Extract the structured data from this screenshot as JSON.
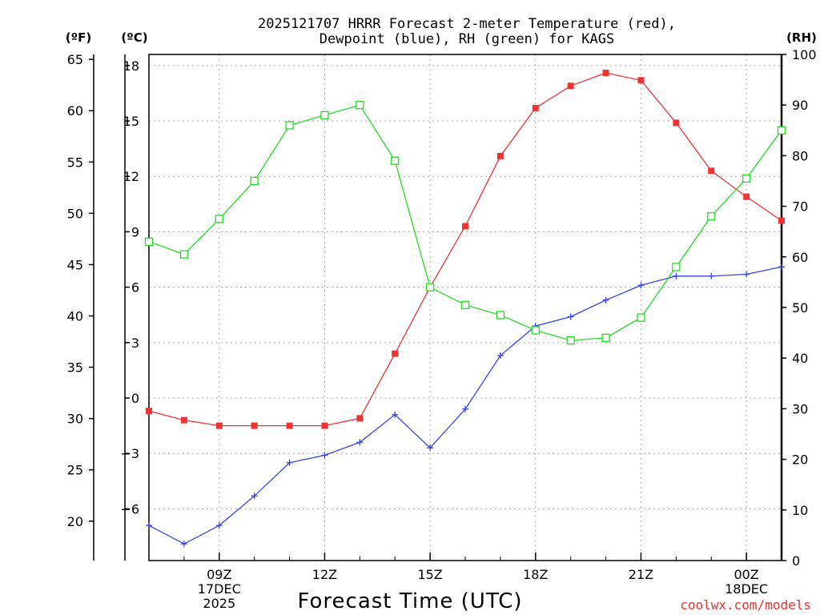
{
  "chart_data": {
    "type": "line",
    "title_line1": "2025121707 HRRR Forecast 2-meter Temperature (red),",
    "title_line2": "Dewpoint (blue), RH (green) for KAGS",
    "xlabel": "Forecast Time (UTC)",
    "credit": "coolwx.com/models",
    "colors": {
      "temp": "#ee3333",
      "dewpoint": "#3344ee",
      "rh": "#22dd22",
      "credit": "#dd3333"
    },
    "axes": {
      "fahrenheit": {
        "label": "(ºF)",
        "ticks": [
          "65",
          "60",
          "55",
          "50",
          "45",
          "40",
          "35",
          "30",
          "25",
          "20"
        ],
        "values": [
          65,
          60,
          55,
          50,
          45,
          40,
          35,
          30,
          25,
          20
        ]
      },
      "celsius": {
        "label": "(ºC)",
        "ticks": [
          "18",
          "15",
          "12",
          "9",
          "6",
          "3",
          "0",
          "−3",
          "−6"
        ],
        "values": [
          18,
          15,
          12,
          9,
          6,
          3,
          0,
          -3,
          -6
        ],
        "ylim": [
          -8.8,
          18.6
        ]
      },
      "rh": {
        "label": "(RH)",
        "ticks": [
          "100",
          "90",
          "80",
          "70",
          "60",
          "50",
          "40",
          "30",
          "20",
          "10",
          "0"
        ],
        "values": [
          100,
          90,
          80,
          70,
          60,
          50,
          40,
          30,
          20,
          10,
          0
        ],
        "ylim": [
          0,
          100
        ]
      }
    },
    "x_hours": [
      7,
      8,
      9,
      10,
      11,
      12,
      13,
      14,
      15,
      16,
      17,
      18,
      19,
      20,
      21,
      22,
      23,
      24,
      25
    ],
    "x_ticks": [
      {
        "hour": 9,
        "line1": "09Z",
        "line2": "17DEC",
        "line3": "2025"
      },
      {
        "hour": 12,
        "line1": "12Z"
      },
      {
        "hour": 15,
        "line1": "15Z"
      },
      {
        "hour": 18,
        "line1": "18Z"
      },
      {
        "hour": 21,
        "line1": "21Z"
      },
      {
        "hour": 24,
        "line1": "00Z",
        "line2": "18DEC"
      }
    ],
    "series": [
      {
        "name": "2-meter Temperature",
        "units": "C",
        "marker": "filled-square",
        "values": [
          -0.7,
          -1.2,
          -1.5,
          -1.5,
          -1.5,
          -1.5,
          -1.1,
          2.4,
          6.0,
          9.3,
          13.1,
          15.7,
          16.9,
          17.6,
          17.2,
          14.9,
          12.3,
          10.9,
          9.6
        ]
      },
      {
        "name": "Dewpoint",
        "units": "C",
        "marker": "plus",
        "values": [
          -6.9,
          -7.9,
          -6.9,
          -5.3,
          -3.5,
          -3.1,
          -2.4,
          -0.9,
          -2.7,
          -0.6,
          2.3,
          3.9,
          4.4,
          5.3,
          6.1,
          6.6,
          6.6,
          6.7,
          7.1
        ]
      },
      {
        "name": "RH",
        "units": "%",
        "marker": "open-square",
        "values": [
          63,
          60.5,
          67.5,
          75,
          86,
          88,
          90,
          79,
          54,
          50.5,
          48.5,
          45.5,
          43.5,
          44,
          48,
          58,
          68,
          75.5,
          85
        ]
      }
    ]
  }
}
